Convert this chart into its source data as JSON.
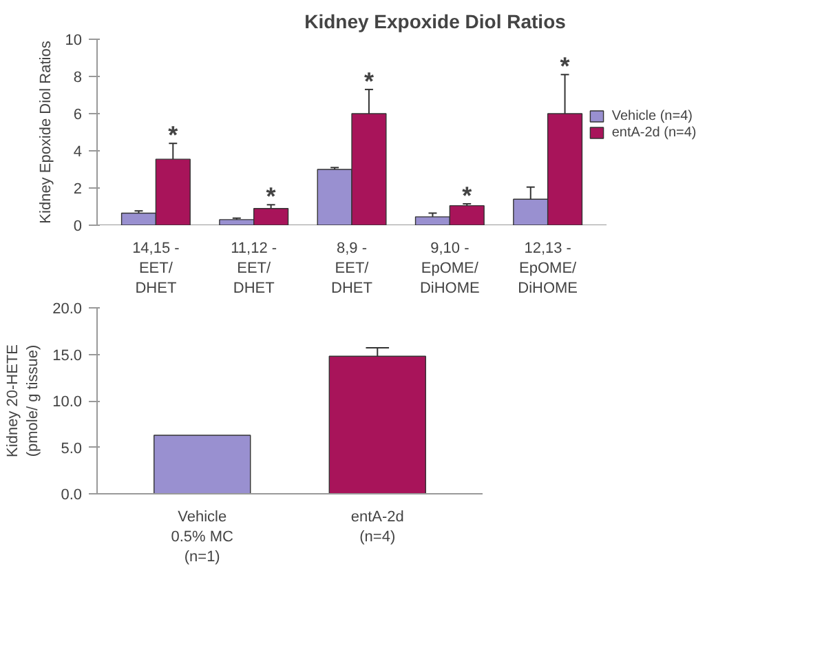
{
  "chart_data": [
    {
      "type": "bar",
      "title": "Kidney Expoxide Diol Ratios",
      "ylabel": "Kidney Epoxide Diol Ratios",
      "categories": [
        "14,15 -\nEET/\nDHET",
        "11,12 -\nEET/\nDHET",
        "8,9 -\nEET/\nDHET",
        "9,10 -\nEpOME/\nDiHOME",
        "12,13 -\nEpOME/\nDiHOME"
      ],
      "series": [
        {
          "name": "Vehicle (n=4)",
          "color": "#9990d0",
          "values": [
            0.65,
            0.3,
            3.0,
            0.45,
            1.4
          ],
          "errors": [
            0.12,
            0.08,
            0.1,
            0.2,
            0.65
          ]
        },
        {
          "name": "entA-2d (n=4)",
          "color": "#a8145a",
          "values": [
            3.55,
            0.9,
            6.0,
            1.05,
            6.0
          ],
          "errors": [
            0.85,
            0.2,
            1.3,
            0.1,
            2.1
          ]
        }
      ],
      "ylim": [
        0,
        10
      ],
      "yticks": [
        0,
        2,
        4,
        6,
        8,
        10
      ],
      "legend": "right",
      "grid": false,
      "annotations": [
        {
          "text": "*",
          "x": "14,15 -\nEET/\nDHET",
          "y": 3.55
        },
        {
          "text": "*",
          "x": "11,12 -\nEET/\nDHET",
          "y": 0.9
        },
        {
          "text": "*",
          "x": "8,9 -\nEET/\nDHET",
          "y": 6.0
        },
        {
          "text": "*",
          "x": "9,10 -\nEpOME/\nDiHOME",
          "y": 1.05
        },
        {
          "text": "*",
          "x": "12,13 -\nEpOME/\nDiHOME",
          "y": 6.0
        }
      ]
    },
    {
      "type": "bar",
      "ylabel": "Kidney 20-HETE\n(pmole/ g tissue)",
      "categories": [
        "Vehicle\n0.5% MC\n(n=1)",
        "entA-2d\n(n=4)"
      ],
      "values": [
        6.3,
        14.8
      ],
      "colors": [
        "#9990d0",
        "#a8145a"
      ],
      "errors": [
        null,
        0.9
      ],
      "ylim": [
        0,
        20
      ],
      "yticks": [
        {
          "value": 0,
          "label": "0.0"
        },
        {
          "value": 5,
          "label": "5.0"
        },
        {
          "value": 10,
          "label": "10.0"
        },
        {
          "value": 15,
          "label": "15.0"
        },
        {
          "value": 20,
          "label": "20.0"
        }
      ],
      "grid": false
    }
  ]
}
